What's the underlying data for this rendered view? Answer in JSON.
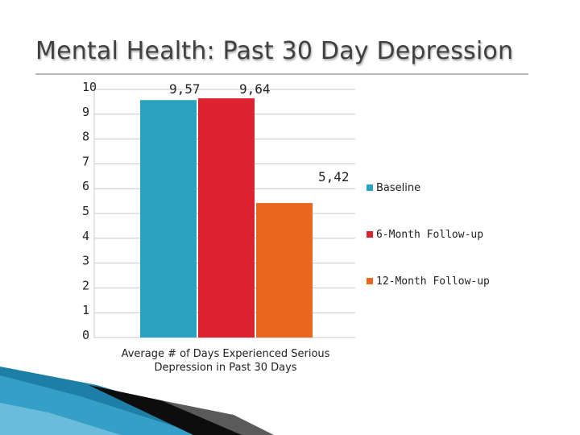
{
  "slide": {
    "title": "Mental Health: Past 30 Day Depression"
  },
  "chart_data": {
    "type": "bar",
    "categories": [
      "Average # of Days Experienced Serious Depression in Past 30 Days"
    ],
    "category_label_lines": [
      "Average # of Days Experienced Serious",
      "Depression in Past 30 Days"
    ],
    "series": [
      {
        "name": "Baseline",
        "values": [
          9.57
        ],
        "label": "9,57",
        "color": "#2aa2c0"
      },
      {
        "name": "6-Month Follow-up",
        "values": [
          9.64
        ],
        "label": "9,64",
        "color": "#dc222e"
      },
      {
        "name": "12-Month Follow-up",
        "values": [
          5.42
        ],
        "label": "5,42",
        "color": "#e8661f"
      }
    ],
    "yticks": [
      "0",
      "1",
      "2",
      "3",
      "4",
      "5",
      "6",
      "7",
      "8",
      "9",
      "10"
    ],
    "ylim": [
      0,
      10
    ],
    "grid": true,
    "legend_position": "right"
  }
}
